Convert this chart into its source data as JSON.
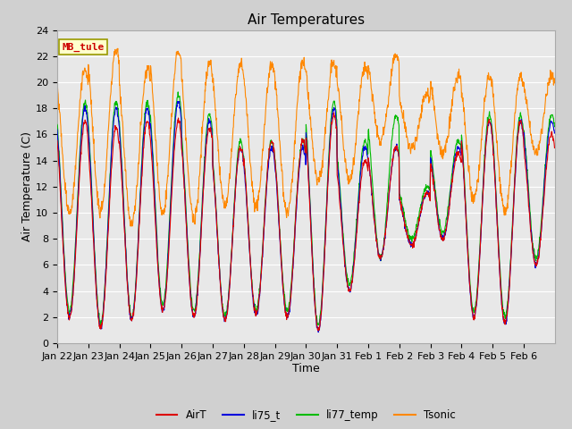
{
  "title": "Air Temperatures",
  "xlabel": "Time",
  "ylabel": "Air Temperature (C)",
  "ylim": [
    0,
    24
  ],
  "yticks": [
    0,
    2,
    4,
    6,
    8,
    10,
    12,
    14,
    16,
    18,
    20,
    22,
    24
  ],
  "xtick_labels": [
    "Jan 22",
    "Jan 23",
    "Jan 24",
    "Jan 25",
    "Jan 26",
    "Jan 27",
    "Jan 28",
    "Jan 29",
    "Jan 30",
    "Jan 31",
    "Feb 1",
    "Feb 2",
    "Feb 3",
    "Feb 4",
    "Feb 5",
    "Feb 6"
  ],
  "station_label": "MB_tule",
  "line_colors": {
    "AirT": "#dd0000",
    "li75_t": "#0000dd",
    "li77_temp": "#00bb00",
    "Tsonic": "#ff8800"
  },
  "fig_bg": "#d0d0d0",
  "axes_bg": "#e8e8e8",
  "grid_color": "#ffffff",
  "title_fontsize": 11,
  "axis_label_fontsize": 9,
  "tick_fontsize": 8
}
